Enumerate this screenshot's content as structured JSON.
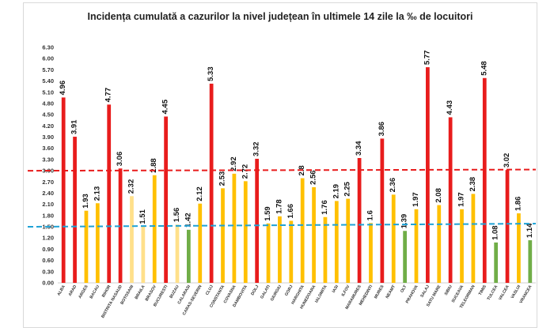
{
  "chart_data": {
    "type": "bar",
    "title": "Incidența cumulată a cazurilor la nivel județean în ultimele 14 zile la ‰ de locuitori",
    "xlabel": "",
    "ylabel": "",
    "ylim": [
      0,
      6.3
    ],
    "yticks": [
      "0.00",
      "0.30",
      "0.60",
      "0.90",
      "1.20",
      "1.50",
      "1.80",
      "2.10",
      "2.40",
      "2.70",
      "3.00",
      "3.30",
      "3.60",
      "3.90",
      "4.20",
      "4.50",
      "4.80",
      "5.10",
      "5.40",
      "5.70",
      "6.00",
      "6.30"
    ],
    "categories": [
      "ALBA",
      "ARAD",
      "ARGES",
      "BACAU",
      "BIHOR",
      "BISTRITA NASAUD",
      "BOTOSANI",
      "BRAILA",
      "BRASOV",
      "BUCURESTI",
      "BUZAU",
      "CALARASI",
      "CARAS-SEVERIN",
      "CLUJ",
      "CONSTANTA",
      "COVASNA",
      "DAMBOVITA",
      "DOLJ",
      "GALATI",
      "GIURGIU",
      "GORJ",
      "HARGHITA",
      "HUNEDOARA",
      "IALOMITA",
      "IASI",
      "ILFOV",
      "MARAMURES",
      "MEHEDINTI",
      "MURES",
      "NEAMT",
      "OLT",
      "PRAHOVA",
      "SALAJ",
      "SATU MARE",
      "SIBIU",
      "SUCEAVA",
      "TELEORMAN",
      "TIMIS",
      "TULCEA",
      "VALCEA",
      "VASLUI",
      "VRANCEA"
    ],
    "values": [
      4.96,
      3.91,
      1.93,
      2.13,
      4.77,
      3.06,
      2.32,
      1.51,
      2.88,
      4.45,
      1.56,
      1.42,
      2.12,
      5.33,
      2.53,
      2.92,
      2.72,
      3.32,
      1.59,
      1.78,
      1.66,
      2.8,
      2.56,
      1.76,
      2.19,
      2.25,
      3.34,
      1.6,
      3.86,
      2.36,
      1.39,
      1.97,
      5.77,
      2.08,
      4.43,
      1.97,
      2.38,
      5.48,
      1.08,
      3.02,
      1.86,
      1.14
    ],
    "value_labels": [
      "4.96",
      "3.91",
      "1.93",
      "2.13",
      "4.77",
      "3.06",
      "2.32",
      "1.51",
      "2.88",
      "4.45",
      "1.56",
      "1.42",
      "2.12",
      "5.33",
      "2.53",
      "2.92",
      "2.72",
      "3.32",
      "1.59",
      "1.78",
      "1.66",
      "2.8",
      "2.56",
      "1.76",
      "2.19",
      "2.25",
      "3.34",
      "1.6",
      "3.86",
      "2.36",
      "1.39",
      "1.97",
      "5.77",
      "2.08",
      "4.43",
      "1.97",
      "2.38",
      "5.48",
      "1.08",
      "3.02",
      "1.86",
      "1.14"
    ],
    "bar_colors": [
      "#e81c1c",
      "#e81c1c",
      "#ffc000",
      "#ffc000",
      "#e81c1c",
      "#e81c1c",
      "#ffe08a",
      "#ffe08a",
      "#ffc000",
      "#e81c1c",
      "#ffe08a",
      "#70ad47",
      "#ffc000",
      "#e81c1c",
      "#ffc000",
      "#ffc000",
      "#ffc000",
      "#e81c1c",
      "#ffc000",
      "#ffc000",
      "#ffc000",
      "#ffc000",
      "#ffc000",
      "#ffc000",
      "#ffc000",
      "#ffc000",
      "#e81c1c",
      "#ffc000",
      "#e81c1c",
      "#ffc000",
      "#70ad47",
      "#ffc000",
      "#e81c1c",
      "#ffc000",
      "#e81c1c",
      "#ffc000",
      "#ffc000",
      "#e81c1c",
      "#70ad47",
      "#e81c1c",
      "#ffc000",
      "#70ad47"
    ],
    "reference_lines": [
      {
        "value": 3.0,
        "color": "#e81c1c",
        "style": "dashed"
      },
      {
        "value": 1.5,
        "color": "#1ea2d6",
        "style": "dashed"
      }
    ],
    "grid": false,
    "legend": "none"
  }
}
